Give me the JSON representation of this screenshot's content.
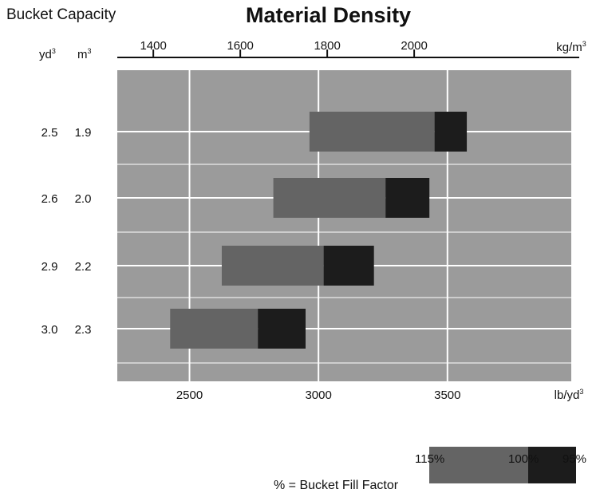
{
  "title": "Material Density",
  "bucket_capacity_label": "Bucket Capacity",
  "col_headers": {
    "yd3": "yd",
    "m3": "m"
  },
  "colors": {
    "plot_bg": "#9b9b9b",
    "bar_115": "#646464",
    "bar_95": "#1c1c1c",
    "grid": "#ffffff"
  },
  "chart_data": {
    "type": "bar",
    "orientation": "horizontal",
    "title": "Material Density",
    "categories": [
      {
        "yd3": "2.5",
        "m3": "1.9"
      },
      {
        "yd3": "2.6",
        "m3": "2.0"
      },
      {
        "yd3": "2.9",
        "m3": "2.2"
      },
      {
        "yd3": "3.0",
        "m3": "2.3"
      }
    ],
    "bars": [
      {
        "start_lb_yd3": 2965,
        "fill100_lb_yd3": 3450,
        "fill95_lb_yd3": 3575
      },
      {
        "start_lb_yd3": 2825,
        "fill100_lb_yd3": 3260,
        "fill95_lb_yd3": 3430
      },
      {
        "start_lb_yd3": 2625,
        "fill100_lb_yd3": 3020,
        "fill95_lb_yd3": 3215
      },
      {
        "start_lb_yd3": 2425,
        "fill100_lb_yd3": 2765,
        "fill95_lb_yd3": 2950
      }
    ],
    "x_bottom": {
      "label": "lb/yd",
      "ticks": [
        2500,
        3000,
        3500
      ],
      "range": [
        2220,
        3980
      ]
    },
    "x_top": {
      "label": "kg/m",
      "ticks": [
        1400,
        1600,
        1800,
        2000
      ]
    },
    "grid": true
  },
  "legend": {
    "label": "% = Bucket Fill Factor",
    "pct_115": "115%",
    "pct_100": "100%",
    "pct_95": "95%"
  }
}
